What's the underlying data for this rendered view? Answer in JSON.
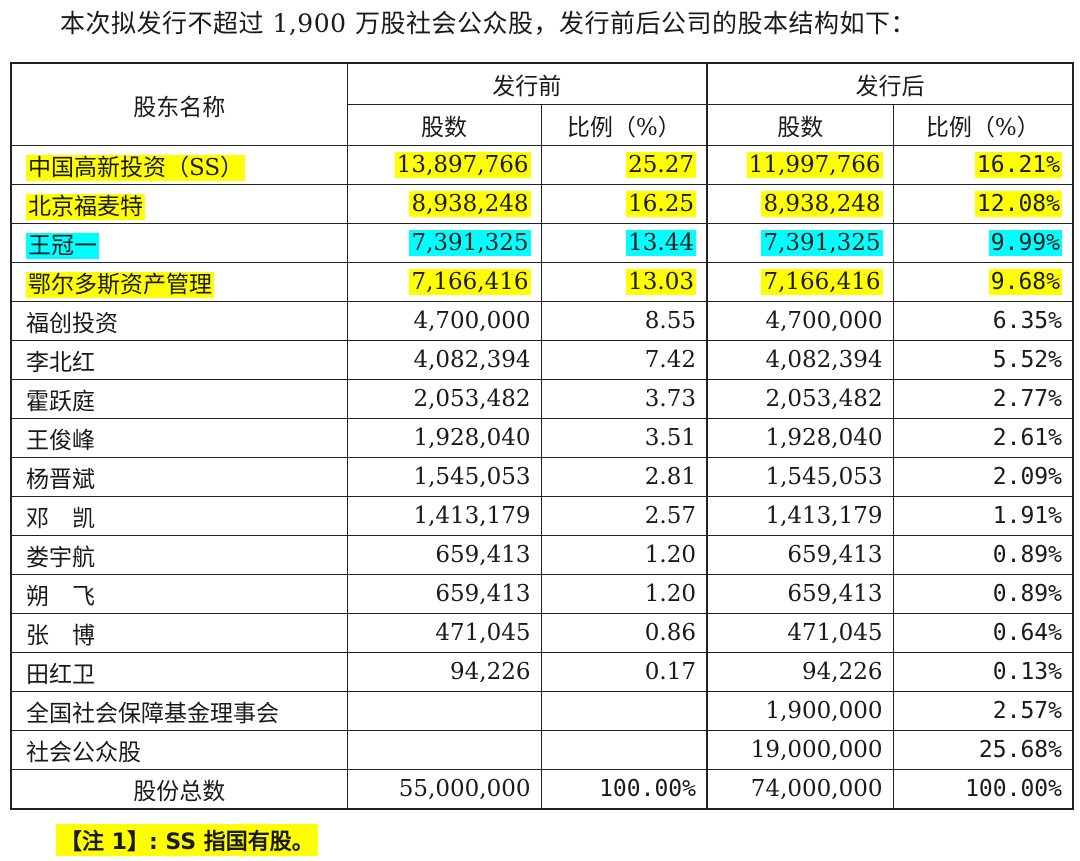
{
  "intro": "本次拟发行不超过 1,900 万股社会公众股，发行前后公司的股本结构如下：",
  "headers": {
    "name": "股东名称",
    "before": "发行前",
    "after": "发行后",
    "shares": "股数",
    "ratio": "比例（%）"
  },
  "rows": [
    {
      "name": "中国高新投资（SS）",
      "before_shares": "13,897,766",
      "before_ratio": "25.27",
      "after_shares": "11,997,766",
      "after_ratio": "16.21%",
      "hl": "y"
    },
    {
      "name": "北京福麦特",
      "before_shares": "8,938,248",
      "before_ratio": "16.25",
      "after_shares": "8,938,248",
      "after_ratio": "12.08%",
      "hl": "y"
    },
    {
      "name": "王冠一",
      "before_shares": "7,391,325",
      "before_ratio": "13.44",
      "after_shares": "7,391,325",
      "after_ratio": "9.99%",
      "hl": "c"
    },
    {
      "name": "鄂尔多斯资产管理",
      "before_shares": "7,166,416",
      "before_ratio": "13.03",
      "after_shares": "7,166,416",
      "after_ratio": "9.68%",
      "hl": "y"
    },
    {
      "name": "福创投资",
      "before_shares": "4,700,000",
      "before_ratio": "8.55",
      "after_shares": "4,700,000",
      "after_ratio": "6.35%",
      "hl": ""
    },
    {
      "name": "李北红",
      "before_shares": "4,082,394",
      "before_ratio": "7.42",
      "after_shares": "4,082,394",
      "after_ratio": "5.52%",
      "hl": ""
    },
    {
      "name": "霍跃庭",
      "before_shares": "2,053,482",
      "before_ratio": "3.73",
      "after_shares": "2,053,482",
      "after_ratio": "2.77%",
      "hl": ""
    },
    {
      "name": "王俊峰",
      "before_shares": "1,928,040",
      "before_ratio": "3.51",
      "after_shares": "1,928,040",
      "after_ratio": "2.61%",
      "hl": ""
    },
    {
      "name": "杨晋斌",
      "before_shares": "1,545,053",
      "before_ratio": "2.81",
      "after_shares": "1,545,053",
      "after_ratio": "2.09%",
      "hl": ""
    },
    {
      "name": "邓　凯",
      "before_shares": "1,413,179",
      "before_ratio": "2.57",
      "after_shares": "1,413,179",
      "after_ratio": "1.91%",
      "hl": ""
    },
    {
      "name": "娄宇航",
      "before_shares": "659,413",
      "before_ratio": "1.20",
      "after_shares": "659,413",
      "after_ratio": "0.89%",
      "hl": ""
    },
    {
      "name": "朔　飞",
      "before_shares": "659,413",
      "before_ratio": "1.20",
      "after_shares": "659,413",
      "after_ratio": "0.89%",
      "hl": ""
    },
    {
      "name": "张　博",
      "before_shares": "471,045",
      "before_ratio": "0.86",
      "after_shares": "471,045",
      "after_ratio": "0.64%",
      "hl": ""
    },
    {
      "name": "田红卫",
      "before_shares": "94,226",
      "before_ratio": "0.17",
      "after_shares": "94,226",
      "after_ratio": "0.13%",
      "hl": ""
    },
    {
      "name": "全国社会保障基金理事会",
      "before_shares": "",
      "before_ratio": "",
      "after_shares": "1,900,000",
      "after_ratio": "2.57%",
      "hl": ""
    },
    {
      "name": "社会公众股",
      "before_shares": "",
      "before_ratio": "",
      "after_shares": "19,000,000",
      "after_ratio": "25.68%",
      "hl": ""
    }
  ],
  "total": {
    "name": "股份总数",
    "before_shares": "55,000,000",
    "before_ratio": "100.00%",
    "after_shares": "74,000,000",
    "after_ratio": "100.00%"
  },
  "note": "【注 1】: SS 指国有股。"
}
